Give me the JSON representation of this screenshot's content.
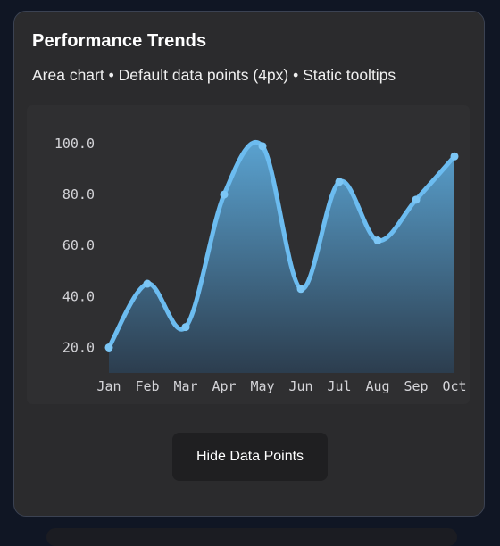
{
  "card": {
    "title": "Performance Trends",
    "subtitle": "Area chart • Default data points (4px) • Static tooltips"
  },
  "controls": {
    "toggle_label": "Hide Data Points"
  },
  "colors": {
    "line": "#6cbcf0",
    "area_top": "#5aa2d0",
    "area_bottom": "#2c3d4e",
    "point": "#7cc6f5"
  },
  "chart_data": {
    "type": "area",
    "categories": [
      "Jan",
      "Feb",
      "Mar",
      "Apr",
      "May",
      "Jun",
      "Jul",
      "Aug",
      "Sep",
      "Oct"
    ],
    "values": [
      20,
      45,
      28,
      80,
      99,
      43,
      85,
      62,
      78,
      95
    ],
    "yticks": [
      "20.0",
      "40.0",
      "60.0",
      "80.0",
      "100.0"
    ],
    "ylim": [
      10,
      100
    ],
    "grid": false,
    "data_points_visible": true
  }
}
